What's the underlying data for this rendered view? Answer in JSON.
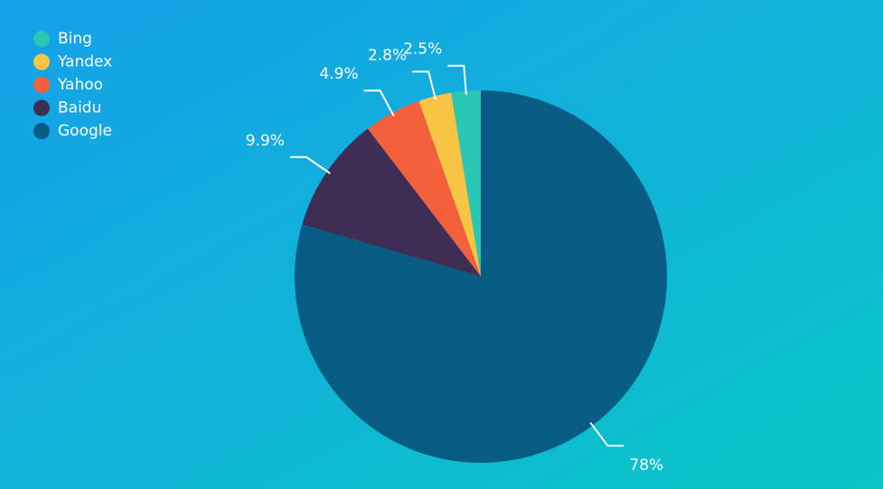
{
  "chart_data": {
    "type": "pie",
    "categories": [
      "Bing",
      "Yandex",
      "Yahoo",
      "Baidu",
      "Google"
    ],
    "values": [
      2.5,
      2.8,
      4.9,
      9.9,
      78
    ],
    "value_labels": [
      "2.5%",
      "2.8%",
      "4.9%",
      "9.9%",
      "78%"
    ],
    "colors": [
      "#2cc7b4",
      "#f8c444",
      "#f5603c",
      "#3e2d55",
      "#065c82"
    ],
    "legend": "top-left"
  }
}
